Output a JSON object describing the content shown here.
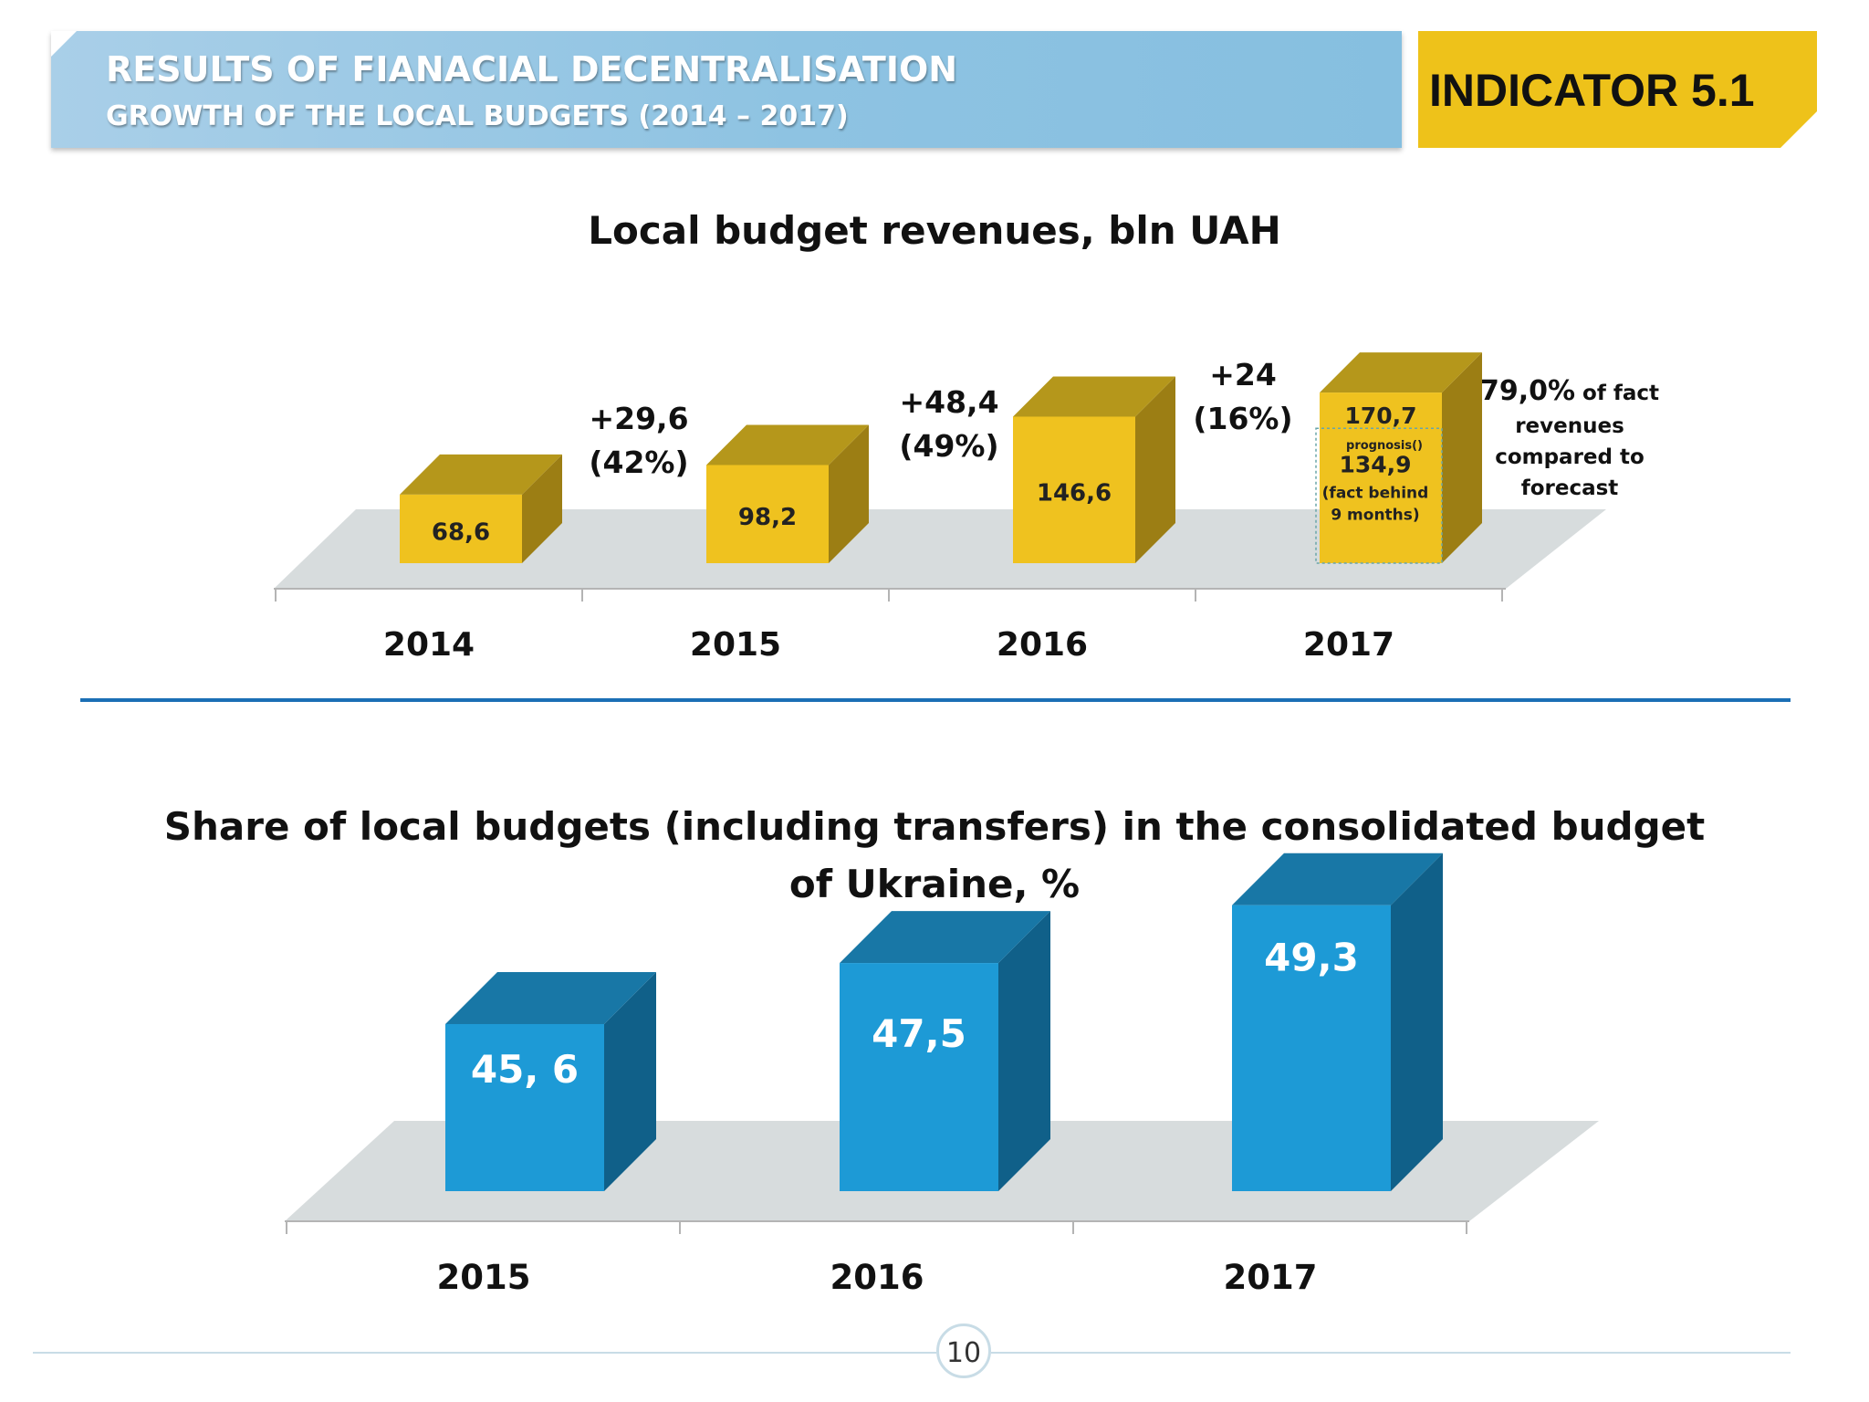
{
  "header": {
    "title": "RESULTS OF FIANACIAL DECENTRALISATION",
    "subtitle": "GROWTH OF THE LOCAL BUDGETS (2014 – 2017)",
    "indicator": "INDICATOR 5.1"
  },
  "page_number": "10",
  "chart_data": [
    {
      "type": "bar",
      "title": "Local budget revenues, bln UAH",
      "categories": [
        "2014",
        "2015",
        "2016",
        "2017"
      ],
      "values": [
        68.6,
        98.2,
        146.6,
        170.7
      ],
      "data_labels": [
        "68,6",
        "98,2",
        "146,6",
        "170,7"
      ],
      "partial": {
        "category": "2017",
        "value": 134.9,
        "label": "134,9",
        "note_lines": [
          "(fact behind",
          "9 months)"
        ]
      },
      "prognosis_note": "prognosis()",
      "growth_annotations": [
        {
          "delta": "+29,6",
          "pct": "(42%)"
        },
        {
          "delta": "+48,4",
          "pct": "(49%)"
        },
        {
          "delta": "+24",
          "pct": "(16%)"
        }
      ],
      "side_note": {
        "value": "79,0%",
        "lines": [
          "of fact",
          "revenues",
          "compared to",
          "forecast"
        ]
      },
      "colors": {
        "front": "#efc21f",
        "top": "#b5971b",
        "side": "#9c7e14",
        "floor": "#d7dcdd"
      }
    },
    {
      "type": "bar",
      "title": "Share of local budgets (including transfers) in the consolidated budget of Ukraine, %",
      "title_lines": [
        "Share of local budgets (including transfers) in the consolidated budget",
        "of Ukraine, %"
      ],
      "categories": [
        "2015",
        "2016",
        "2017"
      ],
      "values": [
        45.6,
        47.5,
        49.3
      ],
      "data_labels": [
        "45, 6",
        "47,5",
        "49,3"
      ],
      "colors": {
        "front": "#1d9ad6",
        "top": "#1877a6",
        "side": "#106089",
        "floor": "#d7dcdd"
      }
    }
  ]
}
